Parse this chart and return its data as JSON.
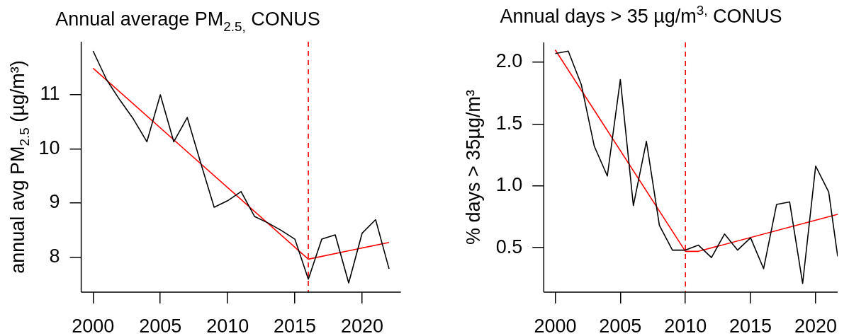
{
  "chart_data": [
    {
      "type": "line",
      "title": "Annual average PM$_{2.5,}$ CONUS",
      "ylabel": "annual avg PM$_{2.5}$ (µg/m³)",
      "x": [
        2000,
        2001,
        2002,
        2003,
        2004,
        2005,
        2006,
        2007,
        2008,
        2009,
        2010,
        2011,
        2012,
        2013,
        2014,
        2015,
        2016,
        2017,
        2018,
        2019,
        2020,
        2021,
        2022
      ],
      "series": [
        {
          "color": "#000000",
          "values": [
            11.81,
            11.28,
            10.9,
            10.55,
            10.13,
            11.0,
            10.13,
            10.58,
            9.74,
            8.92,
            9.04,
            9.21,
            8.75,
            8.63,
            8.49,
            8.33,
            7.59,
            8.33,
            8.41,
            7.52,
            8.44,
            8.69,
            7.78
          ]
        },
        {
          "color": "#ff0000",
          "x": [
            2000,
            2016,
            2022
          ],
          "values": [
            11.49,
            7.96,
            8.27
          ]
        }
      ],
      "xlim": [
        1999.12,
        2022.88
      ],
      "ylim": [
        7.35,
        11.98
      ],
      "xticks": [
        2000,
        2005,
        2010,
        2015,
        2020
      ],
      "yticks": [
        8,
        9,
        10,
        11
      ],
      "ref_lines": [
        {
          "axis": "x",
          "value": 2016,
          "color": "#ff0000",
          "line_style": "dashed"
        }
      ]
    },
    {
      "type": "line",
      "title": "Annual days > 35 µg/m$^{3,}$ CONUS",
      "ylabel": "% days > 35µg/m³",
      "x": [
        2000,
        2001,
        2002,
        2003,
        2004,
        2005,
        2006,
        2007,
        2008,
        2009,
        2010,
        2011,
        2012,
        2013,
        2014,
        2015,
        2016,
        2017,
        2018,
        2019,
        2020,
        2021,
        2021.69
      ],
      "series": [
        {
          "color": "#000000",
          "values": [
            2.07,
            2.09,
            1.82,
            1.32,
            1.08,
            1.86,
            0.84,
            1.36,
            0.68,
            0.48,
            0.48,
            0.52,
            0.42,
            0.61,
            0.48,
            0.58,
            0.33,
            0.85,
            0.87,
            0.21,
            1.16,
            0.95,
            0.43
          ]
        },
        {
          "color": "#ff0000",
          "x": [
            2000,
            2010,
            2011,
            2021.69
          ],
          "values": [
            2.1,
            0.47,
            0.47,
            0.77
          ]
        }
      ],
      "xlim": [
        1999.12,
        2021.69
      ],
      "ylim": [
        0.14,
        2.16
      ],
      "xticks": [
        2000,
        2005,
        2010,
        2015,
        2020
      ],
      "yticks": [
        0.5,
        {
          "value": 1,
          "label": "1.0"
        },
        1.5,
        {
          "value": 2,
          "label": "2.0"
        }
      ],
      "ref_lines": [
        {
          "axis": "x",
          "value": 2010,
          "color": "#ff0000",
          "line_style": "dashed"
        }
      ]
    }
  ]
}
